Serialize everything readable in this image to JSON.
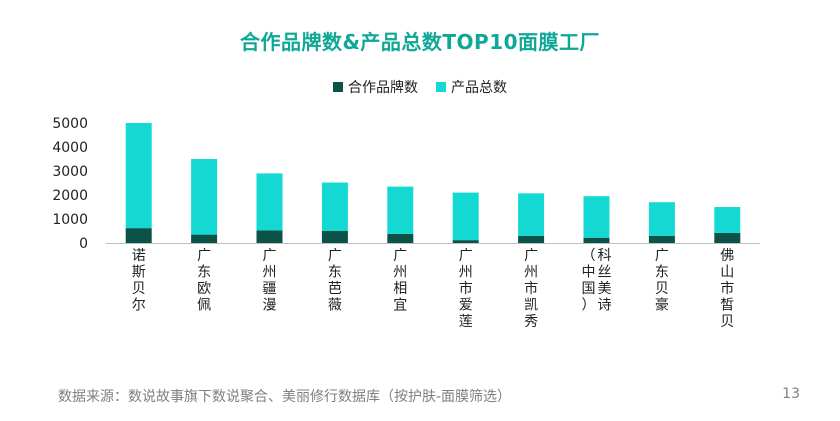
{
  "title": "合作品牌数&产品总数TOP10面膜工厂",
  "footer": "数据来源：数说故事旗下数说聚合、美丽修行数据库（按护肤-面膜筛选）",
  "page_number": "13",
  "colors": {
    "brands": "#0b5349",
    "products": "#14d9d3",
    "title": "#0fa796"
  },
  "chart_data": {
    "type": "bar",
    "stacked": true,
    "categories": [
      "诺斯贝尔",
      "广东欧佩",
      "广州疆漫",
      "广东芭薇",
      "广州相宜",
      "广州市爱莲",
      "广州市凯秀",
      "（中国）科丝美诗",
      "广东贝豪",
      "佛山市皙贝"
    ],
    "category_columns": [
      [
        "诺斯贝尔"
      ],
      [
        "广东欧佩"
      ],
      [
        "广州疆漫"
      ],
      [
        "广东芭薇"
      ],
      [
        "广州相宜"
      ],
      [
        "广州市爱莲"
      ],
      [
        "广州市凯秀"
      ],
      [
        "（中国）",
        "科丝美诗"
      ],
      [
        "广东贝豪"
      ],
      [
        "佛山市皙贝"
      ]
    ],
    "series": [
      {
        "name": "合作品牌数",
        "values": [
          620,
          350,
          530,
          500,
          380,
          120,
          300,
          220,
          300,
          420
        ]
      },
      {
        "name": "产品总数",
        "values": [
          4380,
          3150,
          2370,
          2020,
          1970,
          1980,
          1770,
          1730,
          1400,
          1080
        ]
      }
    ],
    "ylim": [
      0,
      5000
    ],
    "yticks": [
      0,
      1000,
      2000,
      3000,
      4000,
      5000
    ],
    "legend": "top",
    "grid": false
  }
}
